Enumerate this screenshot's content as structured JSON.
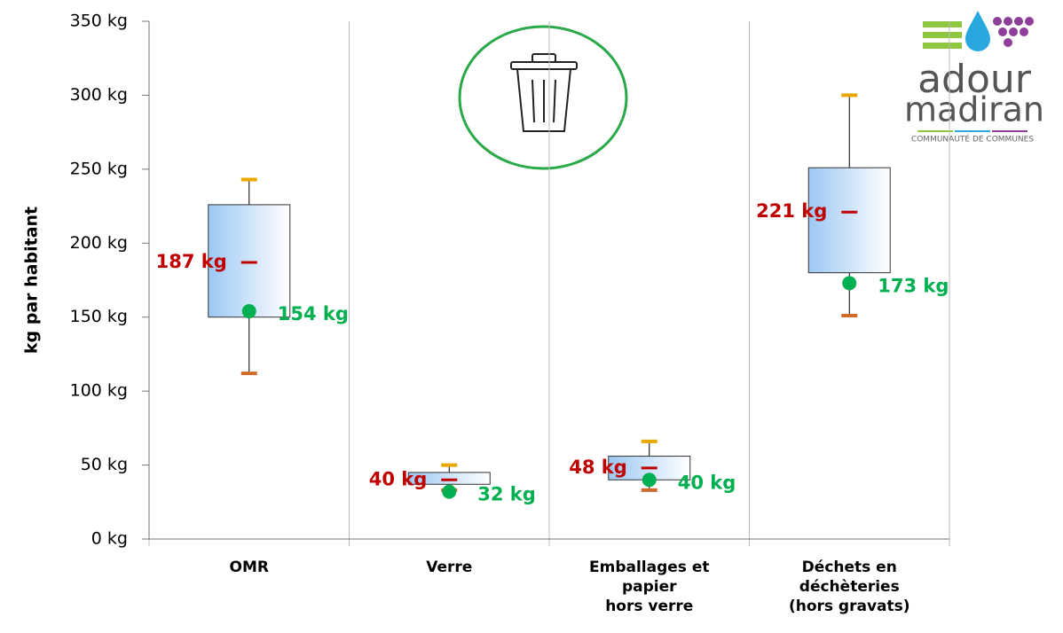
{
  "chart_data": {
    "type": "box",
    "ylabel": "kg par habitant",
    "categories": [
      [
        "OMR"
      ],
      [
        "Verre"
      ],
      [
        "Emballages et",
        "papier",
        "hors verre"
      ],
      [
        "Déchets en",
        "déchèteries",
        "(hors gravats)"
      ]
    ],
    "min": [
      112,
      33,
      33,
      151
    ],
    "q1": [
      150,
      37,
      40,
      180
    ],
    "q3": [
      226,
      45,
      56,
      251
    ],
    "max": [
      243,
      50,
      66,
      300
    ],
    "mean": [
      187,
      40,
      48,
      221
    ],
    "mean_labels": [
      "187 kg",
      "40 kg",
      "48 kg",
      "221 kg"
    ],
    "point": [
      154,
      32,
      40,
      173
    ],
    "point_labels": [
      "154 kg",
      "32 kg",
      "40 kg",
      "173 kg"
    ],
    "ylim": [
      0,
      350
    ],
    "yticks": [
      {
        "value": 0,
        "label": "0 kg"
      },
      {
        "value": 50,
        "label": "50 kg"
      },
      {
        "value": 100,
        "label": "100 kg"
      },
      {
        "value": 150,
        "label": "150 kg"
      },
      {
        "value": 200,
        "label": "200 kg"
      },
      {
        "value": 250,
        "label": "250 kg"
      },
      {
        "value": 300,
        "label": "300 kg"
      },
      {
        "value": 350,
        "label": "350 kg"
      }
    ],
    "colors": {
      "box": "#9cc8f4",
      "max": "#e8a800",
      "min": "#d06a2a",
      "mean": "#c00000",
      "point": "#00b050"
    }
  },
  "logo": {
    "name1": "adour",
    "name2": "madiran",
    "tagline": "COMMUNAUTÉ DE COMMUNES"
  }
}
